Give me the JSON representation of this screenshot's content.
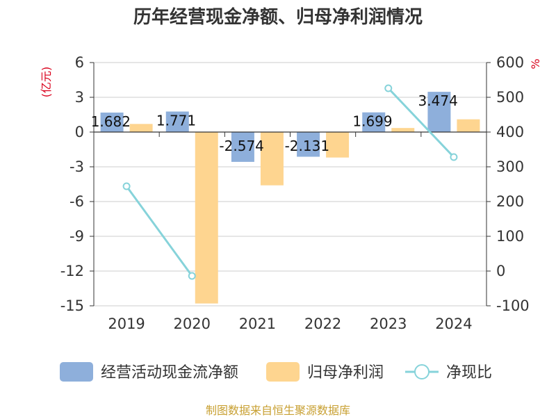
{
  "chart_data": {
    "type": "bar",
    "title": "历年经营现金净额、归母净利润情况",
    "categories": [
      "2019",
      "2020",
      "2021",
      "2022",
      "2023",
      "2024"
    ],
    "left_axis": {
      "unit_label": "(亿元)",
      "ylim": [
        -15,
        6
      ],
      "ticks": [
        6,
        3,
        0,
        -3,
        -6,
        -9,
        -12,
        -15
      ]
    },
    "right_axis": {
      "unit_label": "%",
      "ylim": [
        -100,
        600
      ],
      "ticks": [
        600,
        500,
        400,
        300,
        200,
        100,
        0,
        -100
      ]
    },
    "series": [
      {
        "name": "经营活动现金流净额",
        "kind": "bar",
        "axis": "left",
        "color": "#8eafdb",
        "values": [
          1.682,
          1.771,
          -2.574,
          -2.131,
          1.699,
          3.474
        ],
        "labels": [
          "1.682",
          "1.771",
          "-2.574",
          "-2.131",
          "1.699",
          "3.474"
        ]
      },
      {
        "name": "归母净利润",
        "kind": "bar",
        "axis": "left",
        "color": "#fed590",
        "values": [
          0.7,
          -14.8,
          -4.6,
          -2.2,
          0.35,
          1.1
        ]
      },
      {
        "name": "净现比",
        "kind": "line",
        "axis": "right",
        "color": "#86d3da",
        "values": [
          244,
          -14,
          null,
          null,
          526,
          328
        ]
      }
    ],
    "grid": true,
    "legend_position": "bottom"
  },
  "source_text": "制图数据来自恒生聚源数据库"
}
